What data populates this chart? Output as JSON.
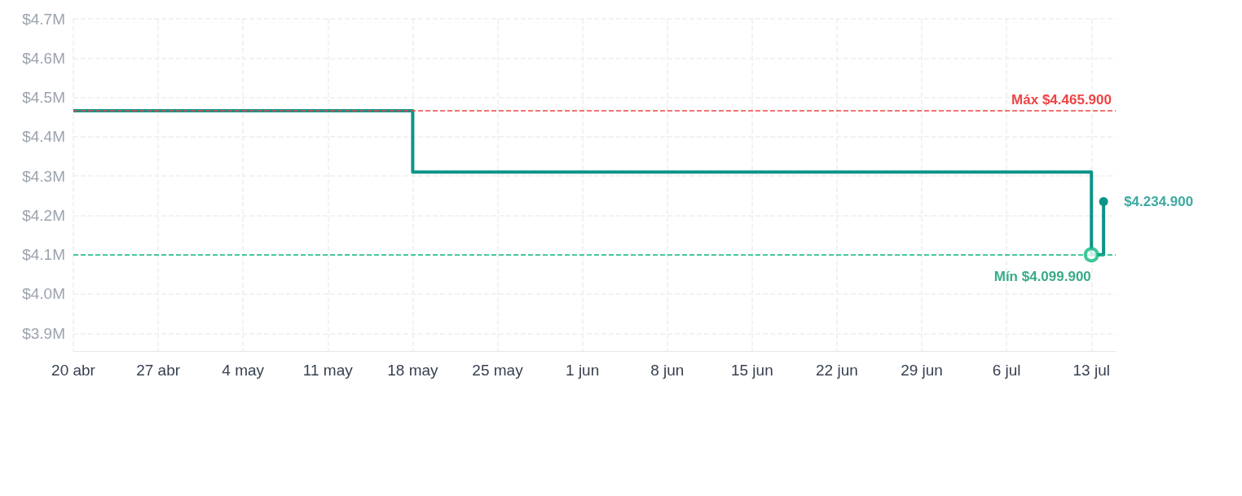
{
  "chart_data": {
    "type": "step",
    "x": [
      "--04-20",
      "--05-18",
      "--07-13",
      "--07-14"
    ],
    "series": [
      {
        "color": "#0d9488",
        "values": [
          4465900,
          4310000,
          4099900,
          4234900
        ]
      }
    ],
    "xlim": [
      "--04-20",
      "--07-15"
    ],
    "xticks": [
      {
        "value": "--04-20",
        "label": "20 abr"
      },
      {
        "value": "--04-27",
        "label": "27 abr"
      },
      {
        "value": "--05-04",
        "label": "4 may"
      },
      {
        "value": "--05-11",
        "label": "11 may"
      },
      {
        "value": "--05-18",
        "label": "18 may"
      },
      {
        "value": "--05-25",
        "label": "25 may"
      },
      {
        "value": "--06-01",
        "label": "1 jun"
      },
      {
        "value": "--06-08",
        "label": "8 jun"
      },
      {
        "value": "--06-15",
        "label": "15 jun"
      },
      {
        "value": "--06-22",
        "label": "22 jun"
      },
      {
        "value": "--06-29",
        "label": "29 jun"
      },
      {
        "value": "--07-06",
        "label": "6 jul"
      },
      {
        "value": "--07-13",
        "label": "13 jul"
      }
    ],
    "ylim": [
      3855000,
      4700000
    ],
    "yticks": [
      {
        "value": 3900000,
        "label": "$3.9M"
      },
      {
        "value": 4000000,
        "label": "$4.0M"
      },
      {
        "value": 4100000,
        "label": "$4.1M"
      },
      {
        "value": 4200000,
        "label": "$4.2M"
      },
      {
        "value": 4300000,
        "label": "$4.3M"
      },
      {
        "value": 4400000,
        "label": "$4.4M"
      },
      {
        "value": 4500000,
        "label": "$4.5M"
      },
      {
        "value": 4600000,
        "label": "$4.6M"
      },
      {
        "value": 4700000,
        "label": "$4.7M"
      }
    ],
    "ref_lines": [
      {
        "axis": "y",
        "value": 4465900,
        "label": "Máx $4.465.900",
        "color": "#ef4444",
        "line_style": "dashed"
      },
      {
        "axis": "y",
        "value": 4099900,
        "label": null,
        "color": "#10b981",
        "line_style": "dashed"
      }
    ],
    "annotations": [
      {
        "text": "Mín $4.099.900",
        "x": "--07-13",
        "y": 4099900
      },
      {
        "text": "$4.234.900",
        "x": "--07-14",
        "y": 4234900
      }
    ],
    "grid": true,
    "marker": "circle",
    "line_style": "solid",
    "legend": false
  }
}
